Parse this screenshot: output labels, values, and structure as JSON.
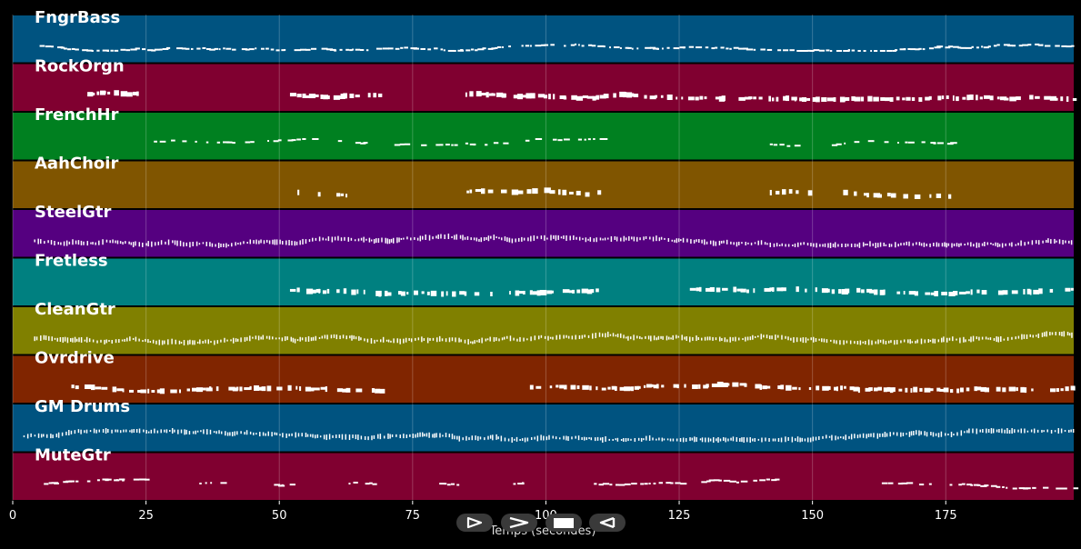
{
  "chart_data": {
    "type": "piano-roll",
    "xlabel": "Temps (secondes)",
    "xlim": [
      0,
      199
    ],
    "xticks": [
      0,
      25,
      50,
      75,
      100,
      125,
      150,
      175
    ],
    "xtick_labels": [
      "0",
      "25",
      "50",
      "75",
      "100",
      "125",
      "150",
      "175"
    ],
    "grid": true,
    "tracks": [
      {
        "name": "FngrBass",
        "color": "#005380",
        "segments": [
          [
            4,
            199
          ]
        ],
        "density": 0.95,
        "note_style": "thin"
      },
      {
        "name": "RockOrgn",
        "color": "#800030",
        "segments": [
          [
            14,
            24
          ],
          [
            52,
            70
          ],
          [
            84,
            199
          ]
        ],
        "density": 0.9,
        "note_style": "thick"
      },
      {
        "name": "FrenchHr",
        "color": "#008020",
        "segments": [
          [
            24,
            66
          ],
          [
            71,
            111
          ],
          [
            142,
            177
          ]
        ],
        "density": 0.55,
        "note_style": "thin"
      },
      {
        "name": "AahChoir",
        "color": "#805500",
        "segments": [
          [
            51,
            65
          ],
          [
            84,
            111
          ],
          [
            142,
            177
          ]
        ],
        "density": 0.6,
        "note_style": "thick"
      },
      {
        "name": "SteelGtr",
        "color": "#550080",
        "segments": [
          [
            4,
            199
          ]
        ],
        "density": 1.0,
        "note_style": "dense"
      },
      {
        "name": "Fretless",
        "color": "#008080",
        "segments": [
          [
            52,
            111
          ],
          [
            127,
            199
          ]
        ],
        "density": 0.7,
        "note_style": "thick"
      },
      {
        "name": "CleanGtr",
        "color": "#808000",
        "segments": [
          [
            4,
            199
          ]
        ],
        "density": 1.0,
        "note_style": "dense"
      },
      {
        "name": "Ovrdrive",
        "color": "#802500",
        "segments": [
          [
            11,
            70
          ],
          [
            97,
            199
          ]
        ],
        "density": 0.8,
        "note_style": "thick"
      },
      {
        "name": "GM Drums",
        "color": "#005380",
        "segments": [
          [
            2,
            199
          ]
        ],
        "density": 1.0,
        "note_style": "dense"
      },
      {
        "name": "MuteGtr",
        "color": "#800030",
        "segments": [
          [
            5,
            25
          ],
          [
            35,
            39
          ],
          [
            49,
            52
          ],
          [
            63,
            70
          ],
          [
            80,
            84
          ],
          [
            93,
            97
          ],
          [
            108,
            143
          ],
          [
            163,
            168
          ],
          [
            170,
            199
          ]
        ],
        "density": 0.8,
        "note_style": "thin"
      }
    ]
  },
  "controls": {
    "play_forward": "play-forward-icon",
    "fast_forward": "fast-forward-icon",
    "stop": "stop-icon",
    "play_backward": "play-backward-icon"
  }
}
